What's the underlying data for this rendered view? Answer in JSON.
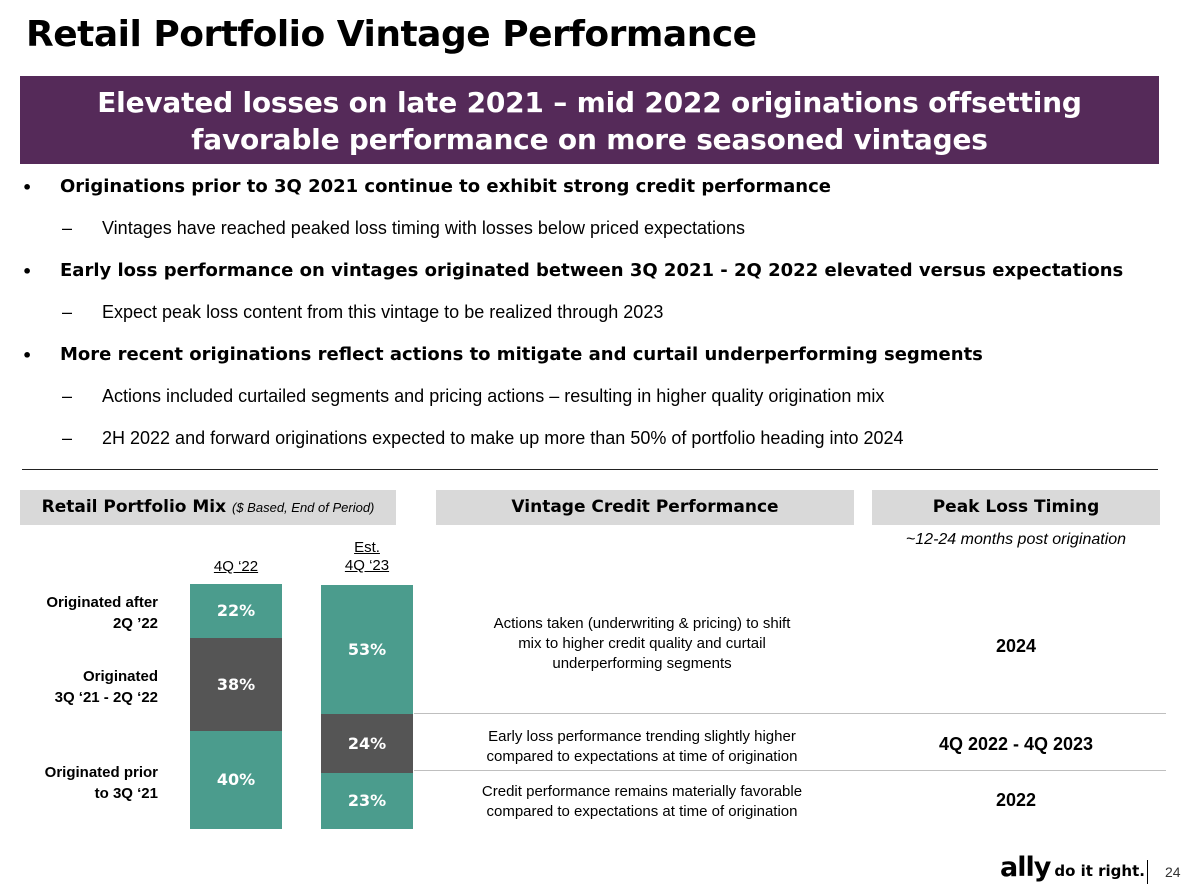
{
  "title": "Retail Portfolio Vintage Performance",
  "banner": {
    "line1": "Elevated losses on late 2021 – mid 2022 originations offsetting",
    "line2": "favorable performance on more seasoned vintages"
  },
  "bullets": [
    {
      "bullet": "•",
      "text": "Originations prior to 3Q 2021 continue to exhibit strong credit performance",
      "subs": [
        {
          "dash": "–",
          "text": "Vintages have reached peaked loss timing with losses below priced expectations"
        }
      ]
    },
    {
      "bullet": "•",
      "text": "Early loss performance on vintages originated between 3Q 2021 - 2Q 2022 elevated versus expectations",
      "subs": [
        {
          "dash": "–",
          "text": "Expect peak loss content from this vintage to be realized through 2023"
        }
      ]
    },
    {
      "bullet": "•",
      "text": "More recent originations reflect actions to mitigate and curtail underperforming segments",
      "subs": [
        {
          "dash": "–",
          "text": "Actions included curtailed segments and pricing actions – resulting in higher quality origination mix"
        },
        {
          "dash": "–",
          "text": "2H 2022 and forward originations expected to make up more than 50% of portfolio heading into 2024"
        }
      ]
    }
  ],
  "headers": {
    "mix": "Retail Portfolio Mix",
    "mix_sub": "($ Based, End of Period)",
    "vintage": "Vintage Credit Performance",
    "peak": "Peak Loss Timing"
  },
  "peak_note": "~12-24 months post origination",
  "columns": {
    "col1": "4Q ‘22",
    "col2_top": "Est.",
    "col2_bottom": "4Q ‘23"
  },
  "row_labels": {
    "after_l1": "Originated after",
    "after_l2": "2Q ’22",
    "mid_l1": "Originated",
    "mid_l2": "3Q ‘21 - 2Q ‘22",
    "prior_l1": "Originated prior",
    "prior_l2": "to 3Q ‘21"
  },
  "chart_data": {
    "type": "bar",
    "stacked": true,
    "categories": [
      "4Q ‘22",
      "Est. 4Q ‘23"
    ],
    "series": [
      {
        "name": "Originated prior to 3Q ‘21",
        "values": [
          40,
          23
        ],
        "labels": [
          "40%",
          "23%"
        ],
        "color": "#4b9c8d"
      },
      {
        "name": "Originated 3Q ‘21 - 2Q ‘22",
        "values": [
          38,
          24
        ],
        "labels": [
          "38%",
          "24%"
        ],
        "color": "#555555"
      },
      {
        "name": "Originated after 2Q ’22",
        "values": [
          22,
          53
        ],
        "labels": [
          "22%",
          "53%"
        ],
        "color": "#4b9c8d"
      }
    ]
  },
  "vintage_rows": {
    "r1_l1": "Actions taken (underwriting & pricing) to shift",
    "r1_l2": "mix to higher credit quality and curtail",
    "r1_l3": "underperforming segments",
    "r2_l1": "Early loss performance trending slightly higher",
    "r2_l2": "compared to expectations at time of origination",
    "r3_l1": "Credit performance remains materially favorable",
    "r3_l2": "compared to expectations at time of origination"
  },
  "peak_rows": {
    "r1": "2024",
    "r2": "4Q 2022 - 4Q 2023",
    "r3": "2022"
  },
  "footer": {
    "logo": "ally",
    "tagline": "do it right.",
    "page": "24"
  }
}
